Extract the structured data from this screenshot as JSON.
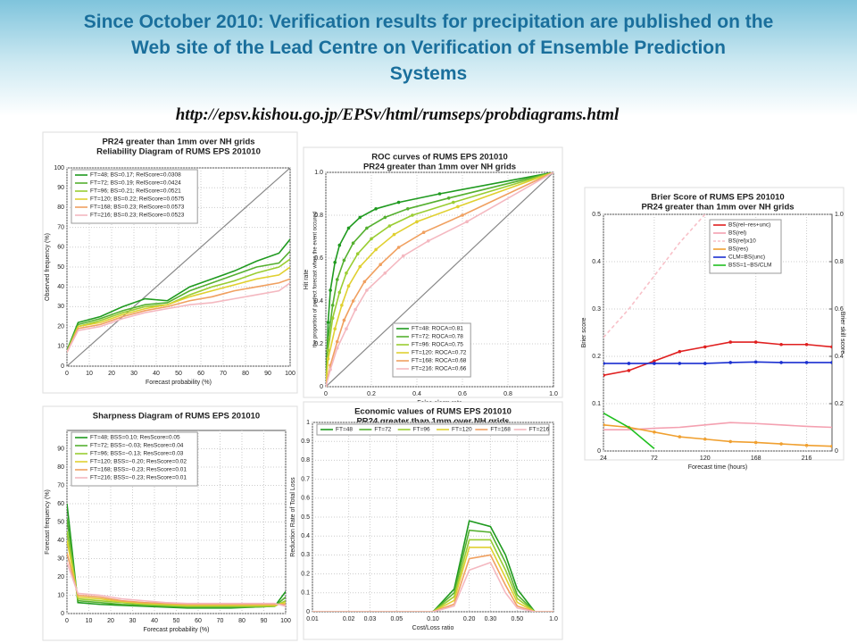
{
  "header": {
    "title_lines": [
      "Since October 2010: Verification results for precipitation are published on the",
      "Web site of the Lead Centre on Verification of Ensemble Prediction",
      "Systems"
    ],
    "url": "http://epsv.kishou.go.jp/EPSv/html/rumseps/probdiagrams.html"
  },
  "chart_data": [
    {
      "type": "line",
      "title": "PR24 greater than 1mm over NH grids",
      "subtitle": "Reliability Diagram of RUMS EPS 201010",
      "xlabel": "Forecast probability (%)",
      "ylabel": "Observed frequency (%)",
      "diagonal": true,
      "grid": true,
      "x": [
        0,
        5,
        15,
        25,
        35,
        45,
        55,
        65,
        75,
        85,
        95,
        100
      ],
      "xlim": [
        0,
        100
      ],
      "ylim": [
        0,
        100
      ],
      "xticks": [
        0,
        10,
        20,
        30,
        40,
        50,
        60,
        70,
        80,
        90,
        100
      ],
      "yticks": [
        0,
        10,
        20,
        30,
        40,
        50,
        60,
        70,
        80,
        90,
        100
      ],
      "series": [
        {
          "name": "FT=48; BS=0.17; RelScore=0.0308",
          "color": "#1f9a1f",
          "values": [
            8,
            22,
            25,
            30,
            34,
            33,
            40,
            44,
            48,
            53,
            57,
            64
          ]
        },
        {
          "name": "FT=72; BS=0.19; RelScore=0.0424",
          "color": "#55b030",
          "values": [
            8,
            21,
            24,
            28,
            31,
            32,
            38,
            42,
            46,
            50,
            52,
            58
          ]
        },
        {
          "name": "FT=96; BS=0.21; RelScore=0.0521",
          "color": "#9acd32",
          "values": [
            7,
            20,
            23,
            27,
            30,
            31,
            36,
            40,
            43,
            47,
            50,
            54
          ]
        },
        {
          "name": "FT=120; BS=0.22; RelScore=0.0575",
          "color": "#e0d030",
          "values": [
            7,
            20,
            22,
            26,
            29,
            31,
            35,
            38,
            41,
            44,
            46,
            50
          ]
        },
        {
          "name": "FT=168; BS=0.23; RelScore=0.0573",
          "color": "#f0a060",
          "values": [
            7,
            19,
            21,
            25,
            28,
            30,
            33,
            35,
            38,
            40,
            42,
            44
          ]
        },
        {
          "name": "FT=216; BS=0.23; RelScore=0.0523",
          "color": "#f4b8c0",
          "values": [
            7,
            18,
            20,
            24,
            27,
            29,
            31,
            32,
            34,
            36,
            38,
            42
          ]
        }
      ]
    },
    {
      "type": "line",
      "title": "ROC curves of RUMS EPS 201010",
      "subtitle": "PR24 greater than 1mm over NH grids",
      "xlabel": "False alarm rate",
      "ylabel": "Hit rate",
      "ylabel_note": "the proportion of perfect forecast when the event occured",
      "diagonal": true,
      "grid": true,
      "xlim": [
        0,
        1
      ],
      "ylim": [
        0,
        1
      ],
      "xticks": [
        0,
        0.2,
        0.4,
        0.6,
        0.8,
        {
          "value": 1,
          "label": "1.0"
        }
      ],
      "yticks": [
        0,
        0.2,
        0.4,
        0.6,
        0.8,
        {
          "value": 1,
          "label": "1.0"
        }
      ],
      "series": [
        {
          "name": "FT=48: ROCA=0.81",
          "color": "#1f9a1f",
          "marker": "circle",
          "x": [
            0,
            0.01,
            0.02,
            0.04,
            0.06,
            0.1,
            0.15,
            0.22,
            0.32,
            0.5,
            1
          ],
          "values": [
            0,
            0.3,
            0.45,
            0.58,
            0.66,
            0.74,
            0.79,
            0.83,
            0.86,
            0.9,
            1
          ]
        },
        {
          "name": "FT=72: ROCA=0.78",
          "color": "#55b030",
          "marker": "circle",
          "x": [
            0,
            0.01,
            0.03,
            0.05,
            0.08,
            0.12,
            0.18,
            0.26,
            0.36,
            0.54,
            1
          ],
          "values": [
            0,
            0.22,
            0.38,
            0.5,
            0.59,
            0.67,
            0.74,
            0.79,
            0.83,
            0.88,
            1
          ]
        },
        {
          "name": "FT=96: ROCA=0.75",
          "color": "#9acd32",
          "marker": "circle",
          "x": [
            0,
            0.01,
            0.03,
            0.06,
            0.09,
            0.14,
            0.2,
            0.28,
            0.38,
            0.56,
            1
          ],
          "values": [
            0,
            0.17,
            0.32,
            0.44,
            0.53,
            0.62,
            0.69,
            0.75,
            0.8,
            0.86,
            1
          ]
        },
        {
          "name": "FT=120: ROCA=0.72",
          "color": "#e0d030",
          "marker": "circle",
          "x": [
            0,
            0.01,
            0.04,
            0.07,
            0.1,
            0.15,
            0.22,
            0.3,
            0.4,
            0.58,
            1
          ],
          "values": [
            0,
            0.13,
            0.27,
            0.38,
            0.47,
            0.56,
            0.64,
            0.71,
            0.77,
            0.84,
            1
          ]
        },
        {
          "name": "FT=168: ROCA=0.68",
          "color": "#f0a060",
          "marker": "circle",
          "x": [
            0,
            0.02,
            0.05,
            0.08,
            0.12,
            0.17,
            0.24,
            0.32,
            0.43,
            0.6,
            1
          ],
          "values": [
            0,
            0.1,
            0.21,
            0.31,
            0.4,
            0.49,
            0.57,
            0.65,
            0.72,
            0.8,
            1
          ]
        },
        {
          "name": "FT=216: ROCA=0.66",
          "color": "#f4b8c0",
          "marker": "circle",
          "x": [
            0,
            0.02,
            0.05,
            0.09,
            0.13,
            0.18,
            0.26,
            0.34,
            0.45,
            0.62,
            1
          ],
          "values": [
            0,
            0.08,
            0.18,
            0.27,
            0.36,
            0.45,
            0.53,
            0.61,
            0.68,
            0.77,
            1
          ]
        }
      ]
    },
    {
      "type": "line",
      "title": "Brier Score of RUMS EPS 201010",
      "subtitle": "PR24 greater than 1mm over NH grids",
      "xlabel": "Forecast time (hours)",
      "ylabel": "Brier score",
      "y2label": "Brier skill score",
      "grid": true,
      "x": [
        24,
        48,
        72,
        96,
        120,
        144,
        168,
        192,
        216,
        240
      ],
      "xlim": [
        24,
        240
      ],
      "ylim": [
        0,
        0.5
      ],
      "y2lim": [
        0,
        1
      ],
      "xticks": [
        24,
        72,
        120,
        168,
        216
      ],
      "yticks": [
        0,
        0.1,
        0.2,
        0.3,
        0.4,
        0.5
      ],
      "y2ticks": [
        0,
        0.2,
        0.4,
        0.6,
        0.8,
        {
          "value": 1,
          "label": "1.0"
        }
      ],
      "series": [
        {
          "name": "BS(rel−res+unc)",
          "color": "#e02020",
          "marker": "circle",
          "values": [
            0.16,
            0.17,
            0.19,
            0.21,
            0.22,
            0.23,
            0.23,
            0.225,
            0.225,
            0.22
          ]
        },
        {
          "name": "BS(rel)",
          "color": "#f4a0b0",
          "values": [
            0.045,
            0.045,
            0.048,
            0.05,
            0.055,
            0.06,
            0.058,
            0.055,
            0.052,
            0.05
          ]
        },
        {
          "name": "BS(rel)x10",
          "color": "#f8c0c8",
          "dash": true,
          "values": [
            0.24,
            0.3,
            0.37,
            0.44,
            0.5,
            null,
            null,
            null,
            null,
            null
          ]
        },
        {
          "name": "BS(res)",
          "color": "#f0a030",
          "marker": "circle",
          "values": [
            0.055,
            0.05,
            0.04,
            0.03,
            0.025,
            0.02,
            0.018,
            0.015,
            0.012,
            0.01
          ]
        },
        {
          "name": "CLM=BS(unc)",
          "color": "#1a2fd0",
          "marker": "circle",
          "values": [
            0.185,
            0.185,
            0.185,
            0.185,
            0.185,
            0.187,
            0.188,
            0.187,
            0.187,
            0.187
          ]
        },
        {
          "name": "BSS=1−BS/CLM",
          "color": "#20c020",
          "axis": "y2",
          "values": [
            0.16,
            0.1,
            0.01,
            null,
            null,
            null,
            null,
            null,
            null,
            null
          ]
        }
      ]
    },
    {
      "type": "line",
      "title": "Sharpness Diagram of RUMS EPS 201010",
      "xlabel": "Forecast probability (%)",
      "ylabel": "Forecast frequency (%)",
      "grid": true,
      "x": [
        0,
        5,
        15,
        25,
        35,
        45,
        55,
        65,
        75,
        85,
        95,
        100
      ],
      "xlim": [
        0,
        100
      ],
      "ylim": [
        0,
        100
      ],
      "xticks": [
        0,
        10,
        20,
        30,
        40,
        50,
        60,
        70,
        80,
        90,
        100
      ],
      "yticks": [
        0,
        10,
        20,
        30,
        40,
        50,
        60,
        70,
        80,
        90
      ],
      "series": [
        {
          "name": "FT=48; BSS=0.10; ResScore=0.05",
          "color": "#1f9a1f",
          "values": [
            60,
            6,
            5,
            4.5,
            4,
            3.5,
            3,
            3,
            3,
            3.5,
            4,
            12
          ]
        },
        {
          "name": "FT=72; BSS=−0.03; ResScore=0.04",
          "color": "#55b030",
          "values": [
            52,
            7,
            6,
            5,
            4.5,
            4,
            3.5,
            3.5,
            3.5,
            3.5,
            4,
            9
          ]
        },
        {
          "name": "FT=96; BSS=−0.13; ResScore=0.03",
          "color": "#9acd32",
          "values": [
            45,
            8,
            7,
            6,
            5,
            4.5,
            4,
            4,
            4,
            4,
            4,
            7
          ]
        },
        {
          "name": "FT=120; BSS=−0.20; ResScore=0.02",
          "color": "#e0d030",
          "values": [
            40,
            9,
            8,
            6.5,
            5.5,
            5,
            4.5,
            4.5,
            4.5,
            4.5,
            4.5,
            6
          ]
        },
        {
          "name": "FT=168; BSS=−0.23; ResScore=0.01",
          "color": "#f0a060",
          "values": [
            33,
            10,
            9,
            7,
            6,
            5.5,
            5,
            5,
            5,
            5,
            5,
            5
          ]
        },
        {
          "name": "FT=216; BSS=−0.23; ResScore=0.01",
          "color": "#f4b8c0",
          "values": [
            28,
            11,
            10,
            8,
            7,
            6,
            5.5,
            5.5,
            5.5,
            5.5,
            5.5,
            4
          ]
        }
      ]
    },
    {
      "type": "line",
      "title": "Economic values of RUMS EPS 201010",
      "subtitle": "PR24 greater than 1mm over NH grids",
      "xlabel": "Cost/Loss ratio",
      "ylabel": "Reduction Rate of Total Loss",
      "xscale": "log",
      "grid": true,
      "legend": "top-horizontal",
      "x": [
        0.01,
        0.02,
        0.03,
        0.05,
        0.1,
        0.15,
        0.2,
        0.3,
        0.4,
        0.5,
        0.7,
        1
      ],
      "xlim": [
        0.01,
        1
      ],
      "ylim": [
        0,
        1
      ],
      "xticks": [
        0.01,
        0.02,
        0.03,
        0.05,
        {
          "value": 0.1,
          "label": "0.10"
        },
        {
          "value": 0.2,
          "label": "0.20"
        },
        {
          "value": 0.3,
          "label": "0.30"
        },
        {
          "value": 0.5,
          "label": "0.50"
        },
        {
          "value": 1,
          "label": "1.0"
        }
      ],
      "yticks": [
        0,
        0.1,
        0.2,
        0.3,
        0.4,
        0.5,
        0.6,
        0.7,
        0.8,
        0.9,
        1
      ],
      "series": [
        {
          "name": "FT=48",
          "color": "#1f9a1f",
          "values": [
            0,
            0,
            0,
            0,
            0,
            0.12,
            0.48,
            0.45,
            0.3,
            0.12,
            0,
            0
          ]
        },
        {
          "name": "FT=72",
          "color": "#55b030",
          "values": [
            0,
            0,
            0,
            0,
            0,
            0.1,
            0.43,
            0.42,
            0.26,
            0.09,
            0,
            0
          ]
        },
        {
          "name": "FT=96",
          "color": "#9acd32",
          "values": [
            0,
            0,
            0,
            0,
            0,
            0.08,
            0.38,
            0.38,
            0.22,
            0.07,
            0,
            0
          ]
        },
        {
          "name": "FT=120",
          "color": "#e0d030",
          "values": [
            0,
            0,
            0,
            0,
            0,
            0.06,
            0.34,
            0.34,
            0.18,
            0.05,
            0,
            0
          ]
        },
        {
          "name": "FT=168",
          "color": "#f0a060",
          "values": [
            0,
            0,
            0,
            0,
            0,
            0.04,
            0.28,
            0.3,
            0.14,
            0.03,
            0,
            0
          ]
        },
        {
          "name": "FT=216",
          "color": "#f4b8c0",
          "values": [
            0,
            0,
            0,
            0,
            0,
            0.03,
            0.22,
            0.26,
            0.1,
            0.02,
            0,
            0
          ]
        }
      ]
    }
  ]
}
